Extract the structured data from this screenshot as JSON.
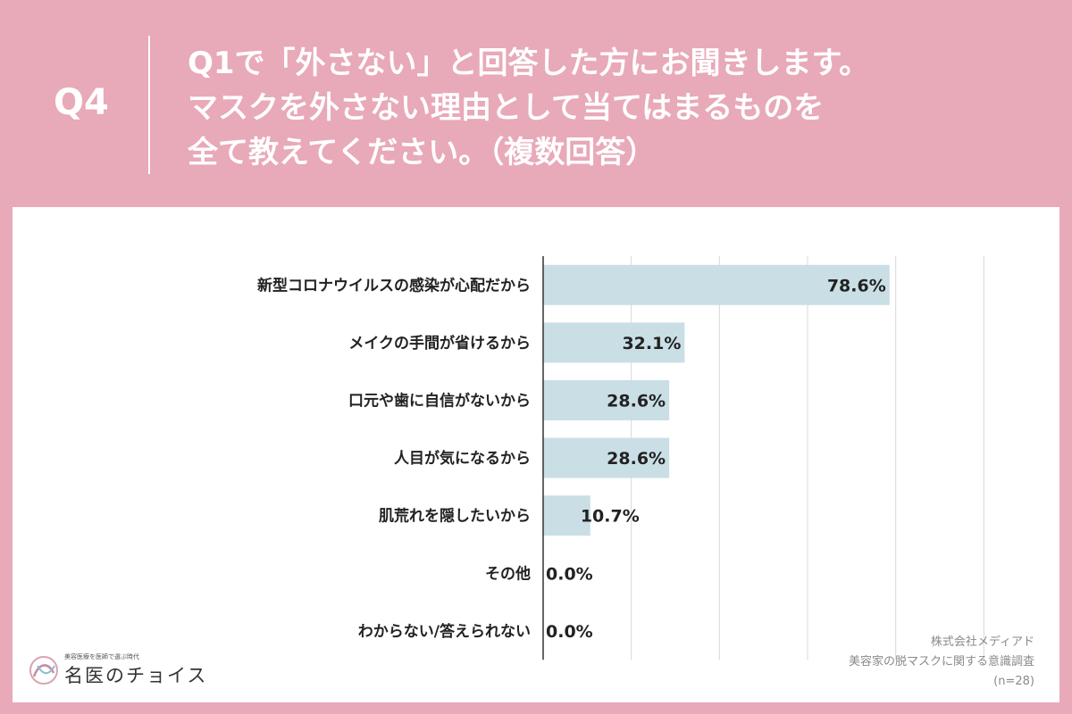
{
  "question": {
    "number": "Q4",
    "lines": [
      "Q1で「外さない」と回答した方にお聞きします。",
      "マスクを外さない理由として当てはまるものを",
      "全て教えてください。（複数回答）"
    ]
  },
  "chart_data": {
    "type": "bar",
    "orientation": "horizontal",
    "categories": [
      "新型コロナウイルスの感染が心配だから",
      "メイクの手間が省けるから",
      "口元や歯に自信がないから",
      "人目が気になるから",
      "肌荒れを隠したいから",
      "その他",
      "わからない/答えられない"
    ],
    "values": [
      78.6,
      32.1,
      28.6,
      28.6,
      10.7,
      0.0,
      0.0
    ],
    "value_labels": [
      "78.6%",
      "32.1%",
      "28.6%",
      "28.6%",
      "10.7%",
      "0.0%",
      "0.0%"
    ],
    "xlim": [
      0,
      120
    ],
    "grid": true,
    "bar_color": "#c9dfe5"
  },
  "source": {
    "company": "株式会社メディアド",
    "survey": "美容家の脱マスクに関する意識調査",
    "n": "(n=28)"
  },
  "logo": {
    "tagline": "美容医療を医師で選ぶ時代",
    "name": "名医のチョイス"
  },
  "colors": {
    "background": "#e8a9b8",
    "panel": "#ffffff",
    "bar": "#c9dfe5"
  }
}
